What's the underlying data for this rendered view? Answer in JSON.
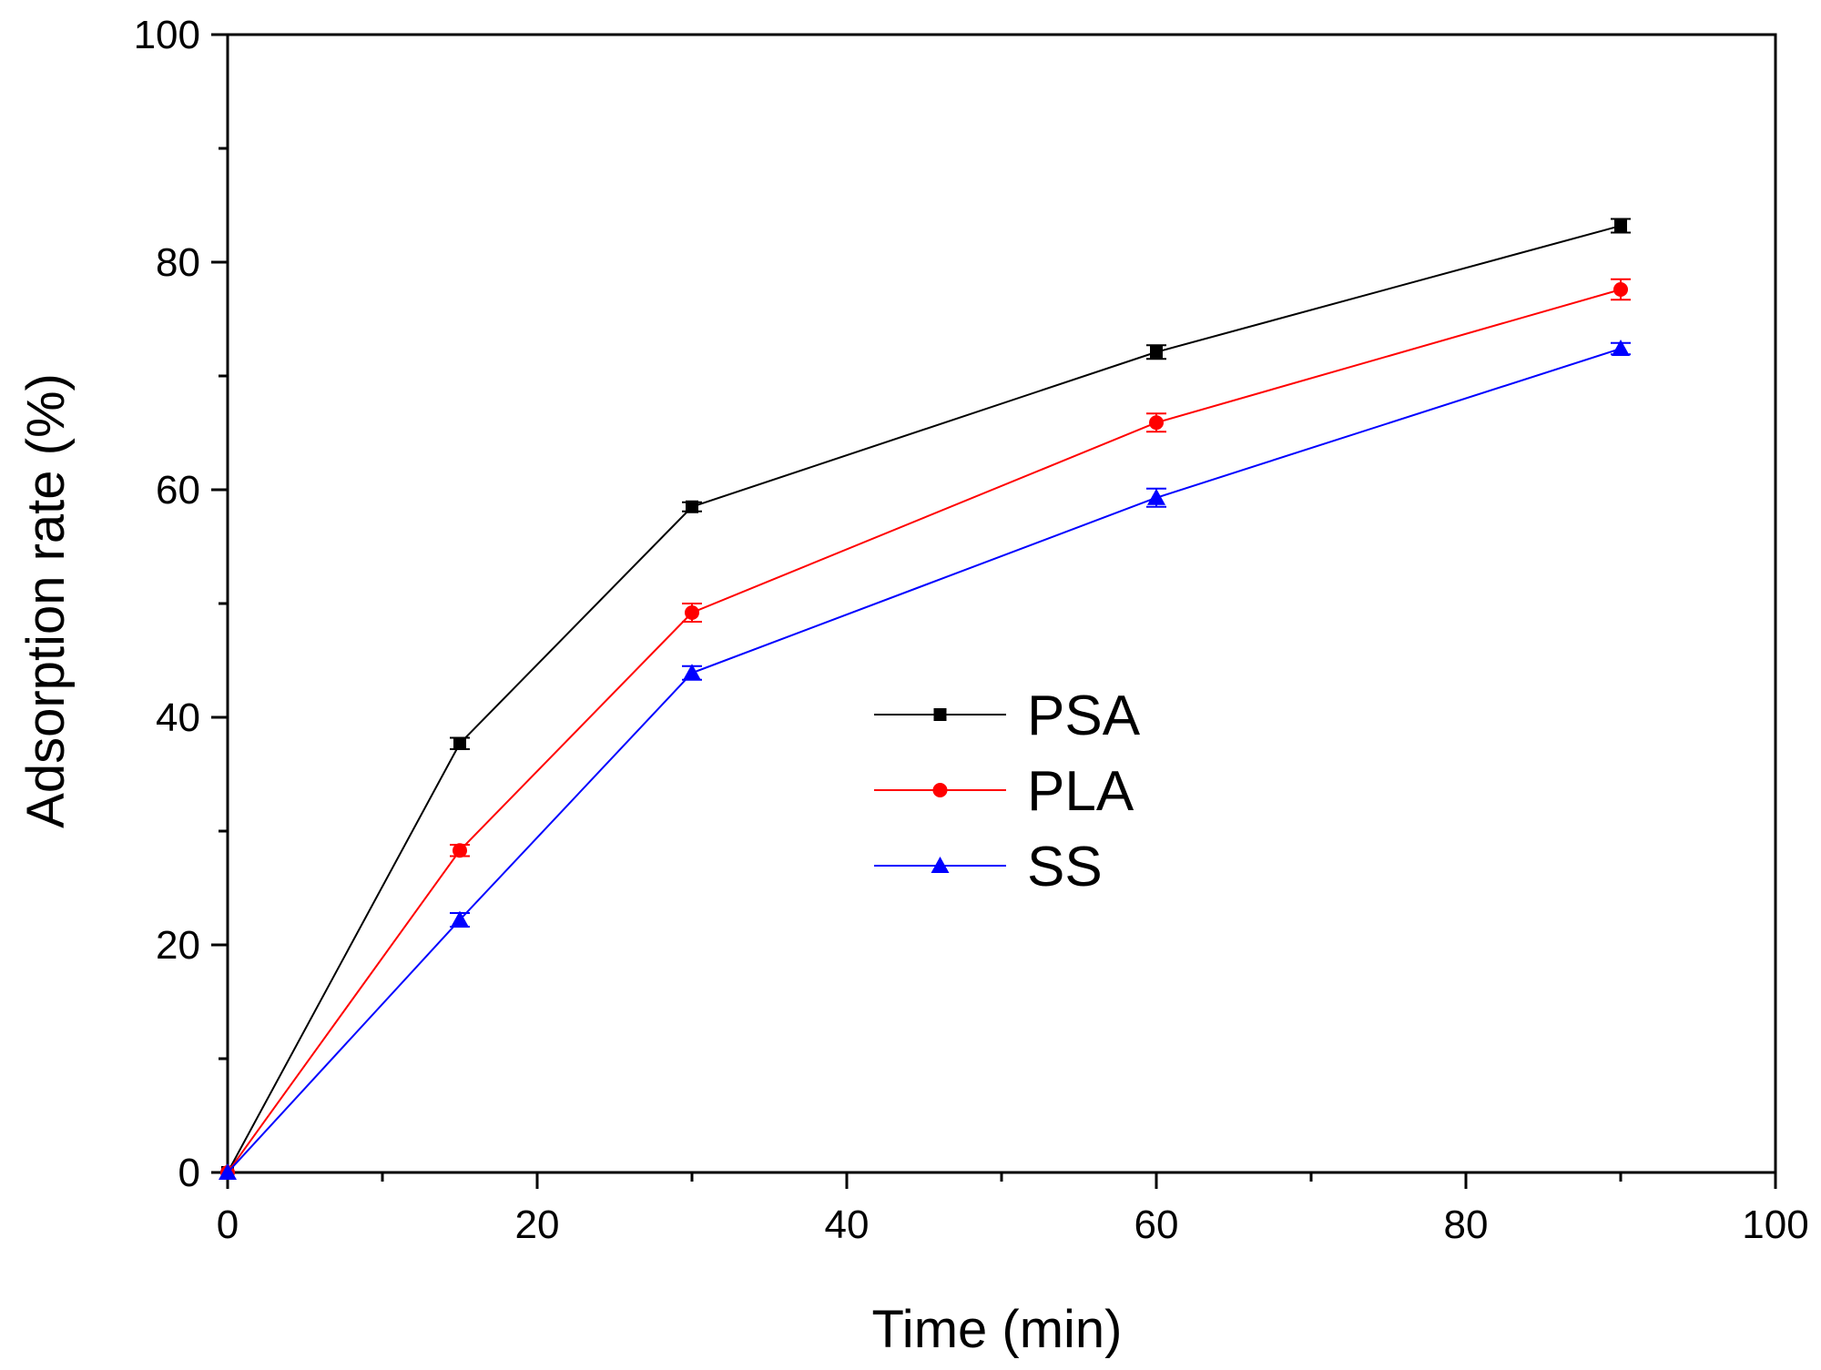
{
  "chart_data": {
    "type": "line",
    "title": "",
    "xlabel": "Time (min)",
    "ylabel": "Adsorption rate (%)",
    "xlim": [
      0,
      100
    ],
    "ylim": [
      0,
      100
    ],
    "x_ticks": [
      0,
      20,
      40,
      60,
      80,
      100
    ],
    "y_ticks": [
      0,
      20,
      40,
      60,
      80,
      100
    ],
    "grid": false,
    "legend_position": "center",
    "x": [
      0,
      15,
      30,
      60,
      90
    ],
    "series": [
      {
        "name": "PSA",
        "color": "#000000",
        "marker": "square",
        "values": [
          0,
          37.7,
          58.5,
          72.1,
          83.2
        ],
        "errors": [
          0,
          0.5,
          0.4,
          0.6,
          0.6
        ]
      },
      {
        "name": "PLA",
        "color": "#ff0000",
        "marker": "circle",
        "values": [
          0,
          28.3,
          49.2,
          65.9,
          77.6
        ],
        "errors": [
          0,
          0.5,
          0.8,
          0.8,
          0.9
        ]
      },
      {
        "name": "SS",
        "color": "#0000ff",
        "marker": "triangle",
        "values": [
          0,
          22.2,
          43.9,
          59.3,
          72.4
        ],
        "errors": [
          0,
          0.6,
          0.6,
          0.8,
          0.5
        ]
      }
    ]
  }
}
